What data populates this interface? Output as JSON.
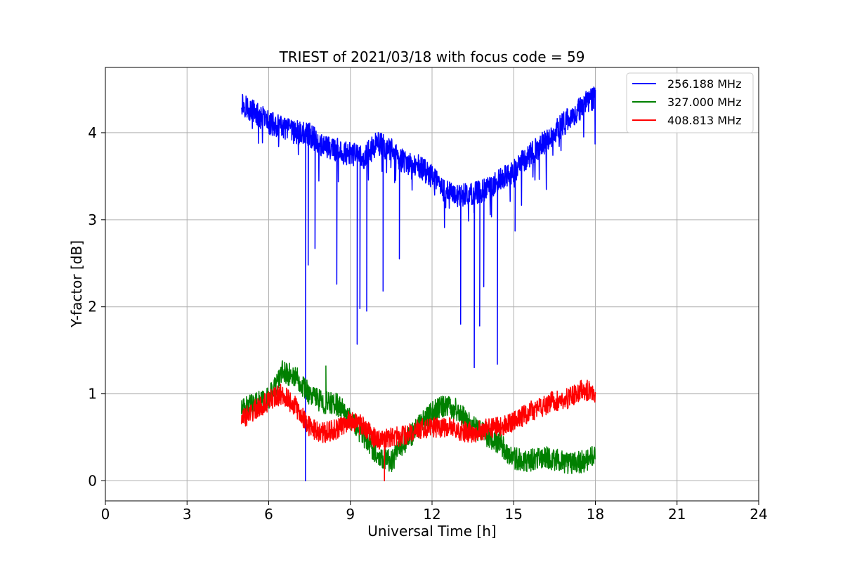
{
  "chart_data": {
    "type": "line",
    "title": "TRIEST of 2021/03/18 with focus code = 59",
    "xlabel": "Universal Time [h]",
    "ylabel": "Y-factor [dB]",
    "xlim": [
      0,
      24
    ],
    "ylim": [
      -0.23,
      4.75
    ],
    "xticks": [
      0,
      3,
      6,
      9,
      12,
      15,
      18,
      21,
      24
    ],
    "yticks": [
      0,
      1,
      2,
      3,
      4
    ],
    "grid": true,
    "legend_position": "top-right",
    "series": [
      {
        "name": "256.188 MHz",
        "color": "#0000ff",
        "x": [
          5.0,
          5.5,
          6.0,
          6.5,
          7.0,
          7.5,
          8.0,
          8.5,
          9.0,
          9.5,
          10.0,
          10.5,
          11.0,
          11.5,
          12.0,
          12.5,
          13.0,
          13.5,
          14.0,
          14.5,
          15.0,
          15.5,
          16.0,
          16.5,
          17.0,
          17.5,
          18.0
        ],
        "values": [
          4.35,
          4.22,
          4.12,
          4.05,
          4.0,
          3.98,
          3.85,
          3.8,
          3.75,
          3.72,
          3.88,
          3.8,
          3.65,
          3.62,
          3.5,
          3.32,
          3.28,
          3.3,
          3.35,
          3.45,
          3.55,
          3.72,
          3.85,
          4.0,
          4.15,
          4.3,
          4.42
        ],
        "dips": [
          {
            "x": 7.35,
            "y": 0.0
          },
          {
            "x": 7.45,
            "y": 2.48
          },
          {
            "x": 7.7,
            "y": 2.67
          },
          {
            "x": 8.5,
            "y": 2.26
          },
          {
            "x": 9.25,
            "y": 1.57
          },
          {
            "x": 9.35,
            "y": 1.98
          },
          {
            "x": 9.6,
            "y": 1.95
          },
          {
            "x": 10.2,
            "y": 2.18
          },
          {
            "x": 10.8,
            "y": 2.55
          },
          {
            "x": 13.05,
            "y": 1.8
          },
          {
            "x": 13.55,
            "y": 1.3
          },
          {
            "x": 13.75,
            "y": 1.78
          },
          {
            "x": 13.9,
            "y": 2.23
          },
          {
            "x": 14.4,
            "y": 1.34
          },
          {
            "x": 15.05,
            "y": 2.87
          }
        ]
      },
      {
        "name": "327.000 MHz",
        "color": "#008000",
        "x": [
          5.0,
          5.5,
          6.0,
          6.5,
          7.0,
          7.5,
          8.0,
          8.5,
          9.0,
          9.5,
          10.0,
          10.5,
          11.0,
          11.5,
          12.0,
          12.5,
          13.0,
          13.5,
          14.0,
          14.5,
          15.0,
          15.5,
          16.0,
          16.5,
          17.0,
          17.5,
          18.0
        ],
        "values": [
          0.82,
          0.88,
          0.95,
          1.25,
          1.2,
          1.0,
          0.9,
          0.88,
          0.72,
          0.5,
          0.3,
          0.22,
          0.45,
          0.62,
          0.78,
          0.88,
          0.8,
          0.62,
          0.52,
          0.42,
          0.26,
          0.22,
          0.28,
          0.25,
          0.2,
          0.22,
          0.28
        ],
        "spikes": [
          {
            "x": 8.1,
            "y": 1.32
          }
        ]
      },
      {
        "name": "408.813 MHz",
        "color": "#ff0000",
        "x": [
          5.0,
          5.5,
          6.0,
          6.5,
          7.0,
          7.5,
          8.0,
          8.5,
          9.0,
          9.5,
          10.0,
          10.5,
          11.0,
          11.5,
          12.0,
          12.5,
          13.0,
          13.5,
          14.0,
          14.5,
          15.0,
          15.5,
          16.0,
          16.5,
          17.0,
          17.5,
          18.0
        ],
        "values": [
          0.7,
          0.82,
          0.92,
          1.0,
          0.85,
          0.62,
          0.55,
          0.6,
          0.7,
          0.62,
          0.45,
          0.5,
          0.52,
          0.6,
          0.62,
          0.62,
          0.58,
          0.55,
          0.6,
          0.62,
          0.68,
          0.78,
          0.85,
          0.92,
          0.95,
          1.05,
          1.02
        ],
        "dips": [
          {
            "x": 10.25,
            "y": 0.0
          }
        ]
      }
    ]
  }
}
